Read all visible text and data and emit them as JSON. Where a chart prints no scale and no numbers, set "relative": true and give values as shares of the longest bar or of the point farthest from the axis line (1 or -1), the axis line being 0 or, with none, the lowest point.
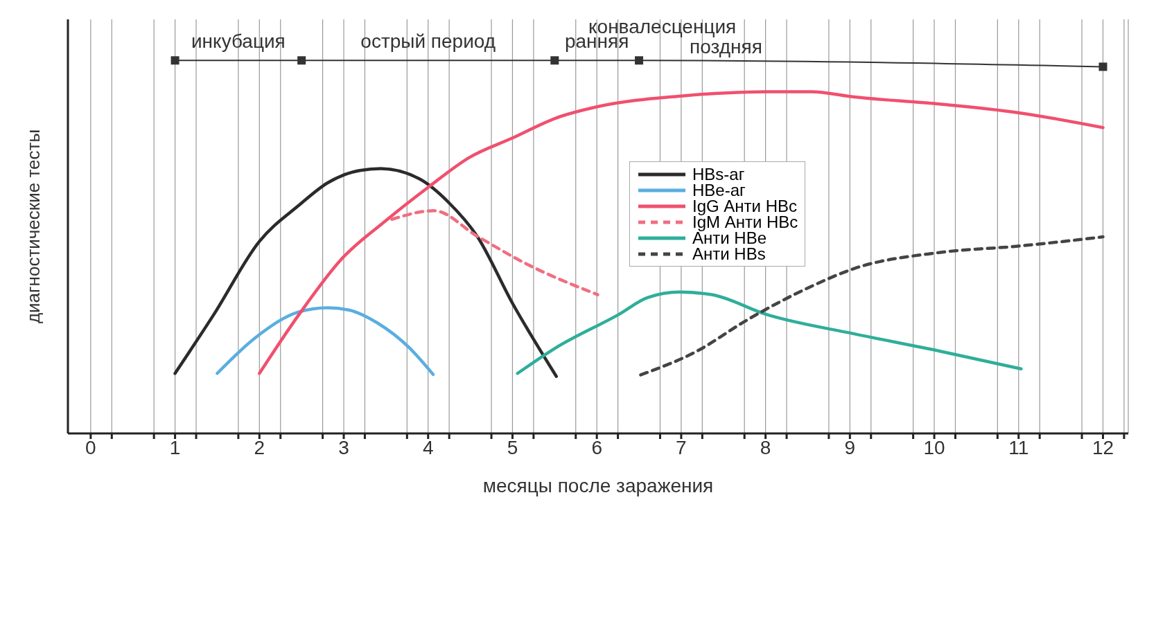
{
  "chart_data": {
    "type": "line",
    "relative": true,
    "xlabel": "месяцы после заражения",
    "ylabel": "диагностические тесты",
    "xlim": [
      -0.27,
      12.3
    ],
    "xticks": [
      0,
      {
        "value": 0.25,
        "label": null
      },
      {
        "value": 0.75,
        "label": null
      },
      1,
      {
        "value": 1.25,
        "label": null
      },
      {
        "value": 1.75,
        "label": null
      },
      2,
      {
        "value": 2.25,
        "label": null
      },
      {
        "value": 2.75,
        "label": null
      },
      3,
      {
        "value": 3.25,
        "label": null
      },
      {
        "value": 3.75,
        "label": null
      },
      4,
      {
        "value": 4.25,
        "label": null
      },
      {
        "value": 4.75,
        "label": null
      },
      5,
      {
        "value": 5.25,
        "label": null
      },
      {
        "value": 5.75,
        "label": null
      },
      6,
      {
        "value": 6.25,
        "label": null
      },
      {
        "value": 6.75,
        "label": null
      },
      7,
      {
        "value": 7.25,
        "label": null
      },
      {
        "value": 7.75,
        "label": null
      },
      8,
      {
        "value": 8.25,
        "label": null
      },
      {
        "value": 8.75,
        "label": null
      },
      9,
      {
        "value": 9.25,
        "label": null
      },
      {
        "value": 9.75,
        "label": null
      },
      10,
      {
        "value": 10.25,
        "label": null
      },
      {
        "value": 10.75,
        "label": null
      },
      11,
      {
        "value": 11.25,
        "label": null
      },
      {
        "value": 11.75,
        "label": null
      },
      12,
      {
        "value": 12.25,
        "label": null
      }
    ],
    "grid": "x",
    "tick_labels": "x",
    "legend": "right",
    "marker": "none",
    "annotations": [
      "инкубация",
      "острый период",
      "ранняя",
      "поздняя",
      "конвалесценция"
    ],
    "series": [
      {
        "name": "HBs-аг",
        "color": "#2b2b2b",
        "line_style": "solid",
        "x": [
          1.0,
          1.46,
          2.0,
          2.47,
          2.81,
          3.19,
          3.44,
          3.9,
          4.24,
          4.58,
          5.0,
          5.52
        ],
        "values": [
          0.161,
          0.319,
          0.515,
          0.612,
          0.672,
          0.705,
          0.71,
          0.682,
          0.62,
          0.529,
          0.349,
          0.153
        ]
      },
      {
        "name": "HBe-аг",
        "color": "#5aaee0",
        "line_style": "solid",
        "x": [
          1.5,
          1.96,
          2.47,
          2.81,
          3.06,
          3.4,
          3.78,
          4.06
        ],
        "values": [
          0.161,
          0.258,
          0.326,
          0.337,
          0.331,
          0.296,
          0.229,
          0.158
        ]
      },
      {
        "name": "IgG Анти HBc",
        "color": "#f0506e",
        "line_style": "solid",
        "x": [
          2.0,
          2.47,
          2.98,
          3.48,
          3.99,
          4.49,
          5.0,
          5.51,
          6.01,
          7.02,
          7.53,
          8.01,
          8.54,
          9.05,
          10.06,
          10.99,
          12.0
        ],
        "values": [
          0.161,
          0.319,
          0.469,
          0.567,
          0.658,
          0.74,
          0.792,
          0.845,
          0.876,
          0.905,
          0.913,
          0.916,
          0.916,
          0.902,
          0.883,
          0.86,
          0.82
        ]
      },
      {
        "name": "IgM Анти HBc",
        "color": "#f06e80",
        "line_style": "dashed",
        "x": [
          3.57,
          4.07,
          4.58,
          5.17,
          6.01
        ],
        "values": [
          0.574,
          0.597,
          0.529,
          0.454,
          0.372
        ]
      },
      {
        "name": "Анти HBe",
        "color": "#2fae9a",
        "line_style": "solid",
        "x": [
          5.06,
          5.51,
          6.26,
          6.6,
          6.98,
          7.36,
          8.01,
          9.05,
          10.06,
          11.03
        ],
        "values": [
          0.161,
          0.229,
          0.319,
          0.364,
          0.379,
          0.372,
          0.319,
          0.267,
          0.221,
          0.173
        ]
      },
      {
        "name": "Анти HBs",
        "color": "#444444",
        "line_style": "dashed",
        "x": [
          6.52,
          7.19,
          7.78,
          8.54,
          9.05,
          10.06,
          10.99,
          12.0
        ],
        "values": [
          0.157,
          0.221,
          0.304,
          0.394,
          0.442,
          0.485,
          0.502,
          0.527
        ]
      },
      {
        "color": "#333333",
        "line_style": "solid",
        "marker": "square",
        "x": [
          1,
          2.5,
          5.5,
          6.5,
          12
        ],
        "values": [
          1,
          1,
          1,
          1,
          0.983
        ]
      }
    ]
  }
}
